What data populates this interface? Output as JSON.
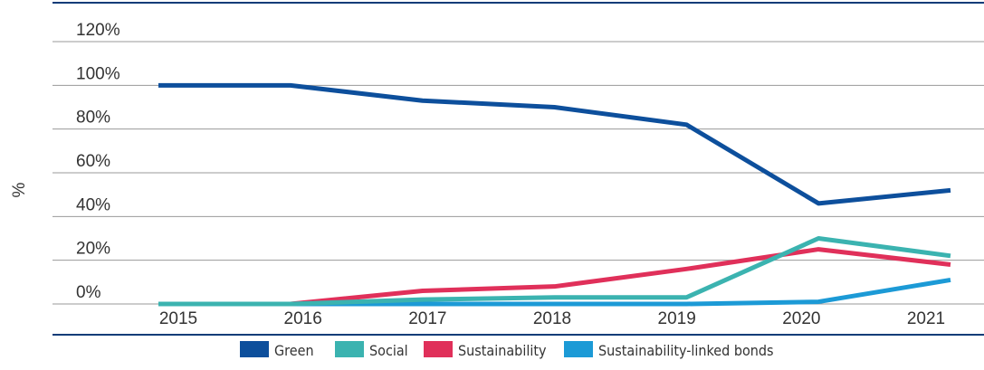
{
  "chart_data": {
    "type": "line",
    "y_label": "%",
    "categories": [
      "2015",
      "2016",
      "2017",
      "2018",
      "2019",
      "2020",
      "2021"
    ],
    "series": [
      {
        "name": "Green",
        "color": "#0d4f9c",
        "values": [
          100,
          100,
          93,
          90,
          82,
          46,
          52
        ]
      },
      {
        "name": "Social",
        "color": "#3bb3b0",
        "values": [
          0,
          0,
          2,
          3,
          3,
          30,
          22
        ]
      },
      {
        "name": "Sustainability",
        "color": "#e0305a",
        "values": [
          0,
          0,
          6,
          8,
          16,
          25,
          18
        ]
      },
      {
        "name": "Sustainability-linked bonds",
        "color": "#1c9ad6",
        "values": [
          0,
          0,
          0,
          0,
          0,
          1,
          11
        ]
      }
    ],
    "ylim": [
      0,
      120
    ],
    "yticks": [
      {
        "value": 0,
        "label": "0%"
      },
      {
        "value": 20,
        "label": "20%"
      },
      {
        "value": 40,
        "label": "40%"
      },
      {
        "value": 60,
        "label": "60%"
      },
      {
        "value": 80,
        "label": "80%"
      },
      {
        "value": 100,
        "label": "100%"
      },
      {
        "value": 120,
        "label": "120%"
      }
    ],
    "grid": true
  }
}
